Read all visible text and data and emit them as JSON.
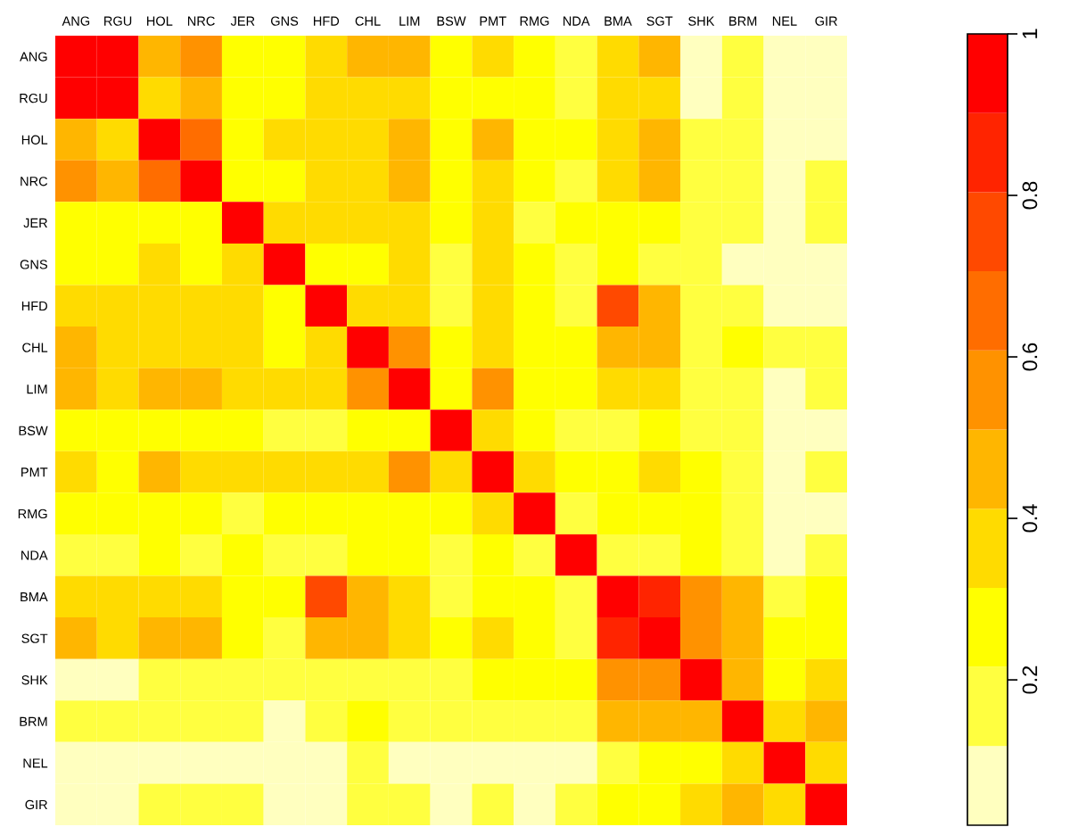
{
  "chart_data": {
    "type": "heatmap",
    "categories": [
      "ANG",
      "RGU",
      "HOL",
      "NRC",
      "JER",
      "GNS",
      "HFD",
      "CHL",
      "LIM",
      "BSW",
      "PMT",
      "RMG",
      "NDA",
      "BMA",
      "SGT",
      "SHK",
      "BRM",
      "NEL",
      "GIR"
    ],
    "y_categories": [
      "ANG",
      "RGU",
      "HOL",
      "NRC",
      "JER",
      "GNS",
      "HFD",
      "CHL",
      "LIM",
      "BSW",
      "PMT",
      "RMG",
      "NDA",
      "BMA",
      "SGT",
      "SHK",
      "BRM",
      "NEL",
      "GIR"
    ],
    "cells": [
      [
        1,
        1,
        0.46,
        0.56,
        0.27,
        0.27,
        0.36,
        0.46,
        0.46,
        0.27,
        0.36,
        0.27,
        0.17,
        0.36,
        0.46,
        0.07,
        0.17,
        0.07,
        0.07
      ],
      [
        1,
        1,
        0.36,
        0.46,
        0.27,
        0.27,
        0.36,
        0.36,
        0.36,
        0.27,
        0.27,
        0.27,
        0.17,
        0.36,
        0.36,
        0.07,
        0.17,
        0.07,
        0.07
      ],
      [
        0.46,
        0.36,
        1,
        0.66,
        0.27,
        0.36,
        0.36,
        0.36,
        0.46,
        0.27,
        0.46,
        0.27,
        0.27,
        0.36,
        0.46,
        0.17,
        0.17,
        0.07,
        0.07
      ],
      [
        0.56,
        0.46,
        0.66,
        1,
        0.27,
        0.27,
        0.36,
        0.36,
        0.46,
        0.27,
        0.36,
        0.27,
        0.17,
        0.36,
        0.46,
        0.17,
        0.17,
        0.07,
        0.17
      ],
      [
        0.27,
        0.27,
        0.27,
        0.27,
        1,
        0.36,
        0.36,
        0.36,
        0.36,
        0.27,
        0.36,
        0.17,
        0.27,
        0.27,
        0.27,
        0.17,
        0.17,
        0.07,
        0.17
      ],
      [
        0.27,
        0.27,
        0.36,
        0.27,
        0.36,
        1,
        0.27,
        0.27,
        0.36,
        0.17,
        0.36,
        0.27,
        0.17,
        0.27,
        0.17,
        0.17,
        0.07,
        0.07,
        0.07
      ],
      [
        0.36,
        0.36,
        0.36,
        0.36,
        0.36,
        0.27,
        1,
        0.36,
        0.36,
        0.17,
        0.36,
        0.27,
        0.17,
        0.76,
        0.46,
        0.17,
        0.17,
        0.07,
        0.07
      ],
      [
        0.46,
        0.36,
        0.36,
        0.36,
        0.36,
        0.27,
        0.36,
        1,
        0.56,
        0.27,
        0.36,
        0.27,
        0.27,
        0.46,
        0.46,
        0.17,
        0.27,
        0.17,
        0.17
      ],
      [
        0.46,
        0.36,
        0.46,
        0.46,
        0.36,
        0.36,
        0.36,
        0.56,
        1,
        0.27,
        0.56,
        0.27,
        0.27,
        0.36,
        0.36,
        0.17,
        0.17,
        0.07,
        0.17
      ],
      [
        0.27,
        0.27,
        0.27,
        0.27,
        0.27,
        0.17,
        0.17,
        0.27,
        0.27,
        1,
        0.36,
        0.27,
        0.17,
        0.17,
        0.27,
        0.17,
        0.17,
        0.07,
        0.07
      ],
      [
        0.36,
        0.27,
        0.46,
        0.36,
        0.36,
        0.36,
        0.36,
        0.36,
        0.56,
        0.36,
        1,
        0.36,
        0.27,
        0.27,
        0.36,
        0.27,
        0.17,
        0.07,
        0.17
      ],
      [
        0.27,
        0.27,
        0.27,
        0.27,
        0.17,
        0.27,
        0.27,
        0.27,
        0.27,
        0.27,
        0.36,
        1,
        0.17,
        0.27,
        0.27,
        0.27,
        0.17,
        0.07,
        0.07
      ],
      [
        0.17,
        0.17,
        0.27,
        0.17,
        0.27,
        0.17,
        0.17,
        0.27,
        0.27,
        0.17,
        0.27,
        0.17,
        1,
        0.17,
        0.17,
        0.27,
        0.17,
        0.07,
        0.17
      ],
      [
        0.36,
        0.36,
        0.36,
        0.36,
        0.27,
        0.27,
        0.76,
        0.46,
        0.36,
        0.17,
        0.27,
        0.27,
        0.17,
        1,
        0.85,
        0.56,
        0.46,
        0.17,
        0.27
      ],
      [
        0.46,
        0.36,
        0.46,
        0.46,
        0.27,
        0.17,
        0.46,
        0.46,
        0.36,
        0.27,
        0.36,
        0.27,
        0.17,
        0.85,
        1,
        0.56,
        0.46,
        0.27,
        0.27
      ],
      [
        0.07,
        0.07,
        0.17,
        0.17,
        0.17,
        0.17,
        0.17,
        0.17,
        0.17,
        0.17,
        0.27,
        0.27,
        0.27,
        0.56,
        0.56,
        1,
        0.46,
        0.27,
        0.36
      ],
      [
        0.17,
        0.17,
        0.17,
        0.17,
        0.17,
        0.07,
        0.17,
        0.27,
        0.17,
        0.17,
        0.17,
        0.17,
        0.17,
        0.46,
        0.46,
        0.46,
        1,
        0.36,
        0.46
      ],
      [
        0.07,
        0.07,
        0.07,
        0.07,
        0.07,
        0.07,
        0.07,
        0.17,
        0.07,
        0.07,
        0.07,
        0.07,
        0.07,
        0.17,
        0.27,
        0.27,
        0.36,
        1,
        0.36
      ],
      [
        0.07,
        0.07,
        0.17,
        0.17,
        0.17,
        0.07,
        0.07,
        0.17,
        0.17,
        0.07,
        0.17,
        0.07,
        0.17,
        0.27,
        0.27,
        0.36,
        0.46,
        0.36,
        1
      ]
    ],
    "clim": [
      0.02,
      1
    ],
    "cticks": [
      0.2,
      0.4,
      0.6,
      0.8,
      1
    ]
  }
}
